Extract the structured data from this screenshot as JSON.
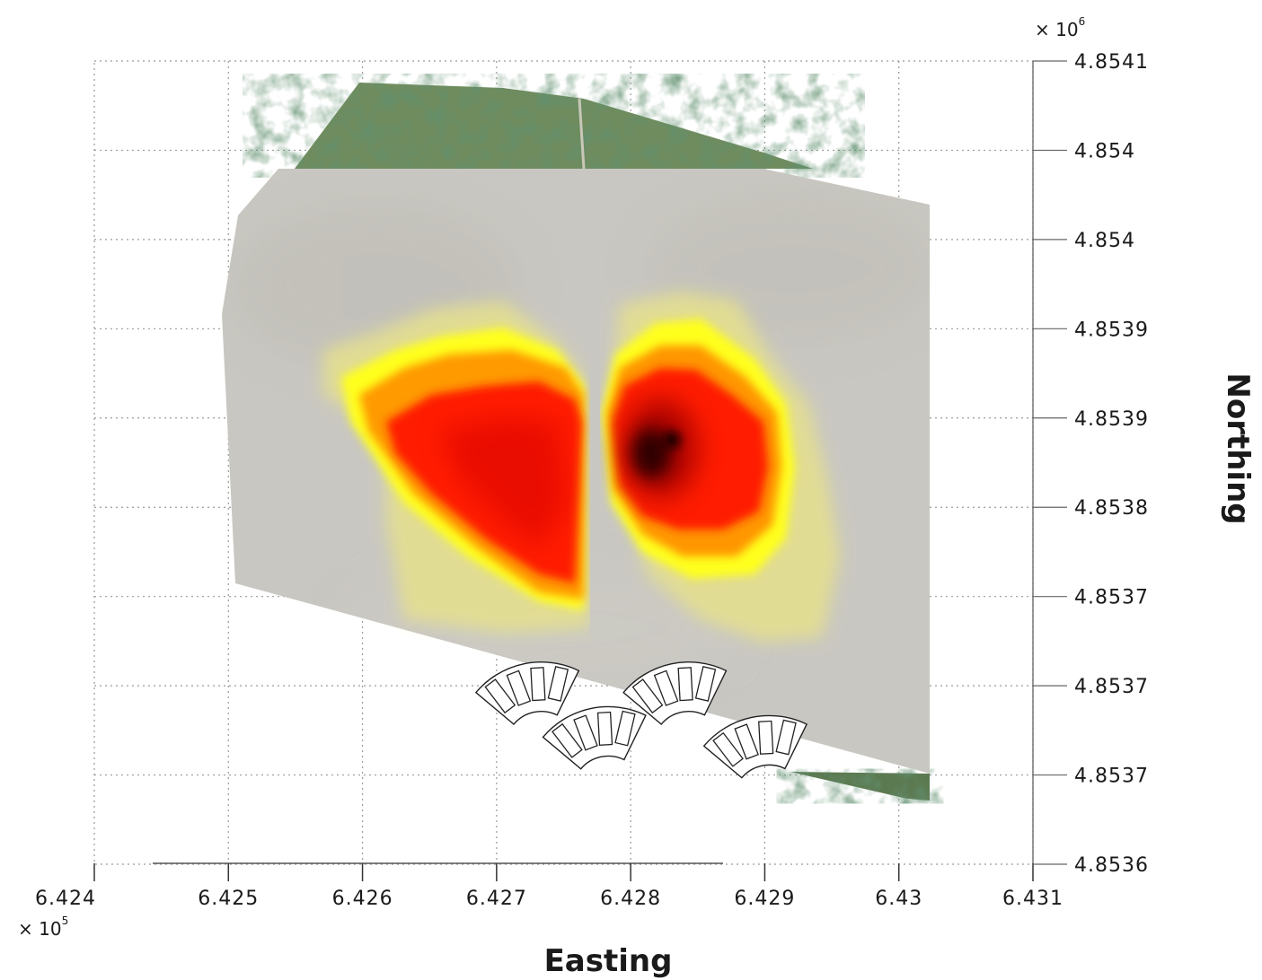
{
  "chart_data": {
    "type": "heatmap",
    "title": "",
    "xlabel": "Easting",
    "ylabel": "Northing",
    "x_multiplier": {
      "prefix": "× 10",
      "exponent": "5"
    },
    "y_multiplier": {
      "prefix": "× 10",
      "exponent": "6"
    },
    "x_ticks": [
      {
        "value": 6.424,
        "label": "6.424"
      },
      {
        "value": 6.425,
        "label": "6.425"
      },
      {
        "value": 6.426,
        "label": "6.426"
      },
      {
        "value": 6.427,
        "label": "6.427"
      },
      {
        "value": 6.428,
        "label": "6.428"
      },
      {
        "value": 6.429,
        "label": "6.429"
      },
      {
        "value": 6.43,
        "label": "6.43"
      },
      {
        "value": 6.431,
        "label": "6.431"
      }
    ],
    "y_ticks": [
      {
        "value": 4.8536,
        "label": "4.8536"
      },
      {
        "value": 4.85365,
        "label": "4.8537"
      },
      {
        "value": 4.8537,
        "label": "4.8537"
      },
      {
        "value": 4.85375,
        "label": "4.8537"
      },
      {
        "value": 4.8538,
        "label": "4.8538"
      },
      {
        "value": 4.85385,
        "label": "4.8539"
      },
      {
        "value": 4.8539,
        "label": "4.8539"
      },
      {
        "value": 4.85395,
        "label": "4.854"
      },
      {
        "value": 4.854,
        "label": "4.854"
      },
      {
        "value": 4.85405,
        "label": "4.8541"
      }
    ],
    "xlim": [
      6.424,
      6.431
    ],
    "ylim": [
      4.8536,
      4.85405
    ],
    "grid": true,
    "colormap": [
      "#f4ee9a",
      "#ffff00",
      "#ff9900",
      "#ff2000",
      "#d00000",
      "#1a0000"
    ],
    "hotspots": [
      {
        "name": "west",
        "center": [
          6.4271,
          4.85388
        ],
        "peak_color": "#e80000"
      },
      {
        "name": "east",
        "center": [
          6.4283,
          4.85388
        ],
        "peak_color": "#1a0000"
      }
    ],
    "structures": [
      {
        "center": [
          6.42725,
          4.853695
        ]
      },
      {
        "center": [
          6.42775,
          4.85367
        ]
      },
      {
        "center": [
          6.42835,
          4.853695
        ]
      },
      {
        "center": [
          6.42895,
          4.853665
        ]
      }
    ]
  }
}
